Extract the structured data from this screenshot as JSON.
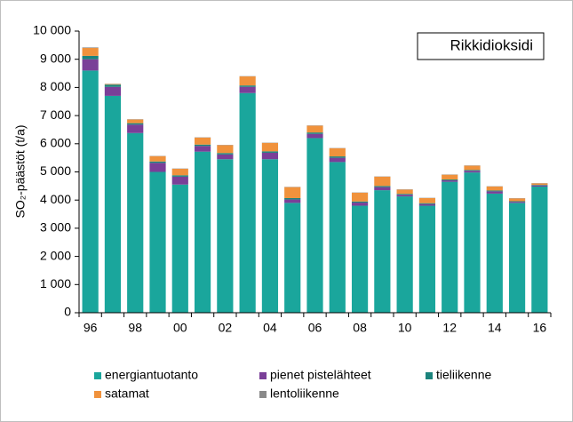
{
  "chart_data": {
    "type": "stacked_bar",
    "annotation": "Rikkidioksidi",
    "ylabel": "SO₂-päästöt (t/a)",
    "categories": [
      "96",
      null,
      "98",
      null,
      "00",
      null,
      "02",
      null,
      "04",
      null,
      "06",
      null,
      "08",
      null,
      "10",
      null,
      "12",
      null,
      "14",
      null,
      "16"
    ],
    "series": [
      {
        "name": "energiantuotanto",
        "color": "#1aa69c",
        "values": [
          8600,
          7700,
          6380,
          5000,
          4550,
          5720,
          5450,
          7800,
          5450,
          3900,
          6200,
          5350,
          3800,
          4350,
          4130,
          3800,
          4650,
          4980,
          4230,
          3900,
          4480
        ]
      },
      {
        "name": "pienet pistelähteet",
        "color": "#7a3f98",
        "values": [
          400,
          320,
          300,
          320,
          280,
          200,
          170,
          220,
          230,
          120,
          150,
          150,
          110,
          110,
          60,
          60,
          50,
          60,
          80,
          40,
          40
        ]
      },
      {
        "name": "tieliikenne",
        "color": "#1b837c",
        "values": [
          120,
          80,
          50,
          50,
          50,
          50,
          50,
          50,
          50,
          50,
          50,
          50,
          40,
          40,
          30,
          30,
          30,
          30,
          30,
          20,
          20
        ]
      },
      {
        "name": "satamat",
        "color": "#f0923c",
        "values": [
          280,
          20,
          130,
          190,
          230,
          250,
          280,
          320,
          300,
          390,
          240,
          290,
          310,
          330,
          150,
          180,
          170,
          150,
          140,
          100,
          50
        ]
      },
      {
        "name": "lentoliikenne",
        "color": "#8a8a8a",
        "values": [
          20,
          10,
          10,
          10,
          10,
          10,
          10,
          10,
          10,
          10,
          10,
          10,
          10,
          10,
          10,
          10,
          10,
          10,
          10,
          10,
          10
        ]
      }
    ],
    "ylim": [
      0,
      10000
    ],
    "yticks": [
      0,
      {
        "value": 1000,
        "label": "1 000"
      },
      {
        "value": 2000,
        "label": "2 000"
      },
      {
        "value": 3000,
        "label": "3 000"
      },
      {
        "value": 4000,
        "label": "4 000"
      },
      {
        "value": 5000,
        "label": "5 000"
      },
      {
        "value": 6000,
        "label": "6 000"
      },
      {
        "value": 7000,
        "label": "7 000"
      },
      {
        "value": 8000,
        "label": "8 000"
      },
      {
        "value": 9000,
        "label": "9 000"
      },
      {
        "value": 10000,
        "label": "10 000"
      }
    ],
    "grid": false
  }
}
